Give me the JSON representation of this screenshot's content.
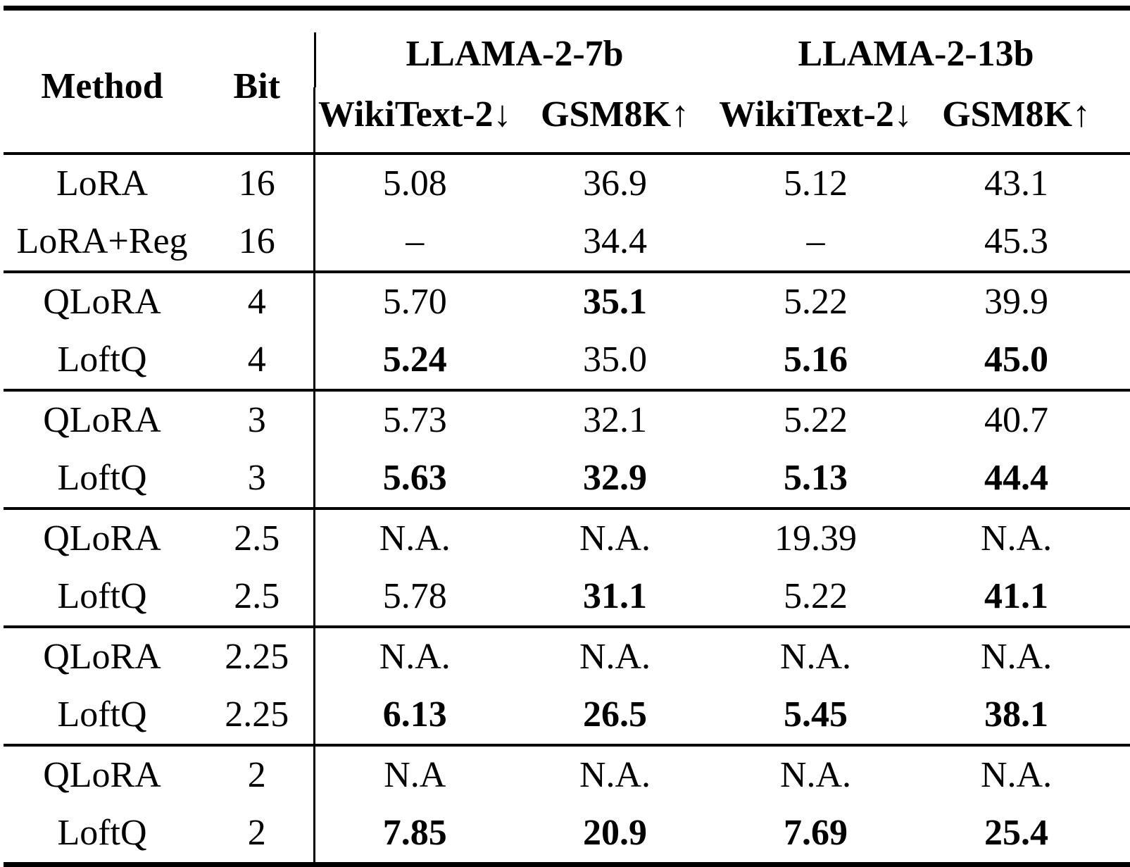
{
  "table": {
    "header": {
      "method": "Method",
      "bit": "Bit",
      "model_groups": [
        {
          "model": "LLAMA-2-7b",
          "metrics": [
            "WikiText-2↓",
            "GSM8K↑"
          ]
        },
        {
          "model": "LLAMA-2-13b",
          "metrics": [
            "WikiText-2↓",
            "GSM8K↑"
          ]
        }
      ]
    },
    "row_groups": [
      {
        "rows": [
          {
            "method": "LoRA",
            "bit": "16",
            "values": [
              {
                "text": "5.08",
                "bold": false
              },
              {
                "text": "36.9",
                "bold": false
              },
              {
                "text": "5.12",
                "bold": false
              },
              {
                "text": "43.1",
                "bold": false
              }
            ]
          },
          {
            "method": "LoRA+Reg",
            "bit": "16",
            "values": [
              {
                "text": "–",
                "bold": false
              },
              {
                "text": "34.4",
                "bold": false
              },
              {
                "text": "–",
                "bold": false
              },
              {
                "text": "45.3",
                "bold": false
              }
            ]
          }
        ]
      },
      {
        "rows": [
          {
            "method": "QLoRA",
            "bit": "4",
            "values": [
              {
                "text": "5.70",
                "bold": false
              },
              {
                "text": "35.1",
                "bold": true
              },
              {
                "text": "5.22",
                "bold": false
              },
              {
                "text": "39.9",
                "bold": false
              }
            ]
          },
          {
            "method": "LoftQ",
            "bit": "4",
            "values": [
              {
                "text": "5.24",
                "bold": true
              },
              {
                "text": "35.0",
                "bold": false
              },
              {
                "text": "5.16",
                "bold": true
              },
              {
                "text": "45.0",
                "bold": true
              }
            ]
          }
        ]
      },
      {
        "rows": [
          {
            "method": "QLoRA",
            "bit": "3",
            "values": [
              {
                "text": "5.73",
                "bold": false
              },
              {
                "text": "32.1",
                "bold": false
              },
              {
                "text": "5.22",
                "bold": false
              },
              {
                "text": "40.7",
                "bold": false
              }
            ]
          },
          {
            "method": "LoftQ",
            "bit": "3",
            "values": [
              {
                "text": "5.63",
                "bold": true
              },
              {
                "text": "32.9",
                "bold": true
              },
              {
                "text": "5.13",
                "bold": true
              },
              {
                "text": "44.4",
                "bold": true
              }
            ]
          }
        ]
      },
      {
        "rows": [
          {
            "method": "QLoRA",
            "bit": "2.5",
            "values": [
              {
                "text": "N.A.",
                "bold": false
              },
              {
                "text": "N.A.",
                "bold": false
              },
              {
                "text": "19.39",
                "bold": false
              },
              {
                "text": "N.A.",
                "bold": false
              }
            ]
          },
          {
            "method": "LoftQ",
            "bit": "2.5",
            "values": [
              {
                "text": "5.78",
                "bold": false
              },
              {
                "text": "31.1",
                "bold": true
              },
              {
                "text": "5.22",
                "bold": false
              },
              {
                "text": "41.1",
                "bold": true
              }
            ]
          }
        ]
      },
      {
        "rows": [
          {
            "method": "QLoRA",
            "bit": "2.25",
            "values": [
              {
                "text": "N.A.",
                "bold": false
              },
              {
                "text": "N.A.",
                "bold": false
              },
              {
                "text": "N.A.",
                "bold": false
              },
              {
                "text": "N.A.",
                "bold": false
              }
            ]
          },
          {
            "method": "LoftQ",
            "bit": "2.25",
            "values": [
              {
                "text": "6.13",
                "bold": true
              },
              {
                "text": "26.5",
                "bold": true
              },
              {
                "text": "5.45",
                "bold": true
              },
              {
                "text": "38.1",
                "bold": true
              }
            ]
          }
        ]
      },
      {
        "rows": [
          {
            "method": "QLoRA",
            "bit": "2",
            "values": [
              {
                "text": "N.A",
                "bold": false
              },
              {
                "text": "N.A.",
                "bold": false
              },
              {
                "text": "N.A.",
                "bold": false
              },
              {
                "text": "N.A.",
                "bold": false
              }
            ]
          },
          {
            "method": "LoftQ",
            "bit": "2",
            "values": [
              {
                "text": "7.85",
                "bold": true
              },
              {
                "text": "20.9",
                "bold": true
              },
              {
                "text": "7.69",
                "bold": true
              },
              {
                "text": "25.4",
                "bold": true
              }
            ]
          }
        ]
      }
    ]
  },
  "colors": {
    "text": "#000000",
    "background": "#ffffff",
    "rule": "#000000"
  }
}
